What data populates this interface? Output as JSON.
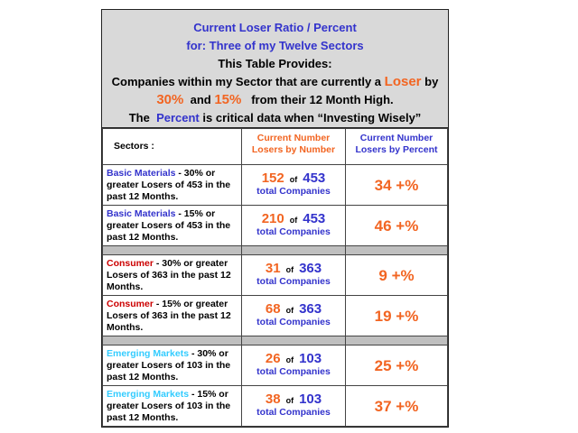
{
  "header": {
    "title": "Current Loser Ratio / Percent",
    "subtitle": "for:  Three  of  my Twelve Sectors",
    "intro": "This Table Provides:",
    "line1": [
      "Companies within my Sector that are currently a",
      "Loser",
      "by"
    ],
    "line2": [
      "30%",
      "and",
      "15%",
      "from their 12 Month High."
    ],
    "line3": [
      "The",
      "Percent",
      "is critical data when “Investing Wisely”"
    ]
  },
  "table": {
    "columns": [
      "Sectors :",
      "Current Number Losers by Number",
      "Current Number Losers by Percent"
    ],
    "groups": [
      {
        "rows": [
          {
            "sector": "Basic Materials",
            "description": " - 30% or greater Losers of 453 in the past 12 Months.",
            "losers": 152,
            "of": "of",
            "total": 453,
            "total_label": "total Companies",
            "percent": 34,
            "percent_suffix": "+%"
          },
          {
            "sector": "Basic Materials",
            "description": " - 15% or greater Losers  of 453 in the past 12 Months.",
            "losers": 210,
            "of": "of",
            "total": 453,
            "total_label": "total Companies",
            "percent": 46,
            "percent_suffix": "+%"
          }
        ]
      },
      {
        "rows": [
          {
            "sector": "Consumer",
            "description": " - 30% or greater Losers of 363 in the past 12 Months.",
            "losers": 31,
            "of": "of",
            "total": 363,
            "total_label": "total Companies",
            "percent": 9,
            "percent_suffix": "+%"
          },
          {
            "sector": "Consumer",
            "description": " - 15% or greater Losers of 363 in the past 12 Months.",
            "losers": 68,
            "of": "of",
            "total": 363,
            "total_label": "total Companies",
            "percent": 19,
            "percent_suffix": "+%"
          }
        ]
      },
      {
        "rows": [
          {
            "sector": "Emerging Markets",
            "description": " - 30% or greater Losers of 103 in the past 12 Months.",
            "losers": 26,
            "of": "of",
            "total": 103,
            "total_label": "total Companies",
            "percent": 25,
            "percent_suffix": "+%"
          },
          {
            "sector": "Emerging Markets",
            "description": " - 15% or greater Losers of 103 in the past 12 Months.",
            "losers": 38,
            "of": "of",
            "total": 103,
            "total_label": "total Companies",
            "percent": 37,
            "percent_suffix": "+%"
          }
        ]
      }
    ]
  }
}
